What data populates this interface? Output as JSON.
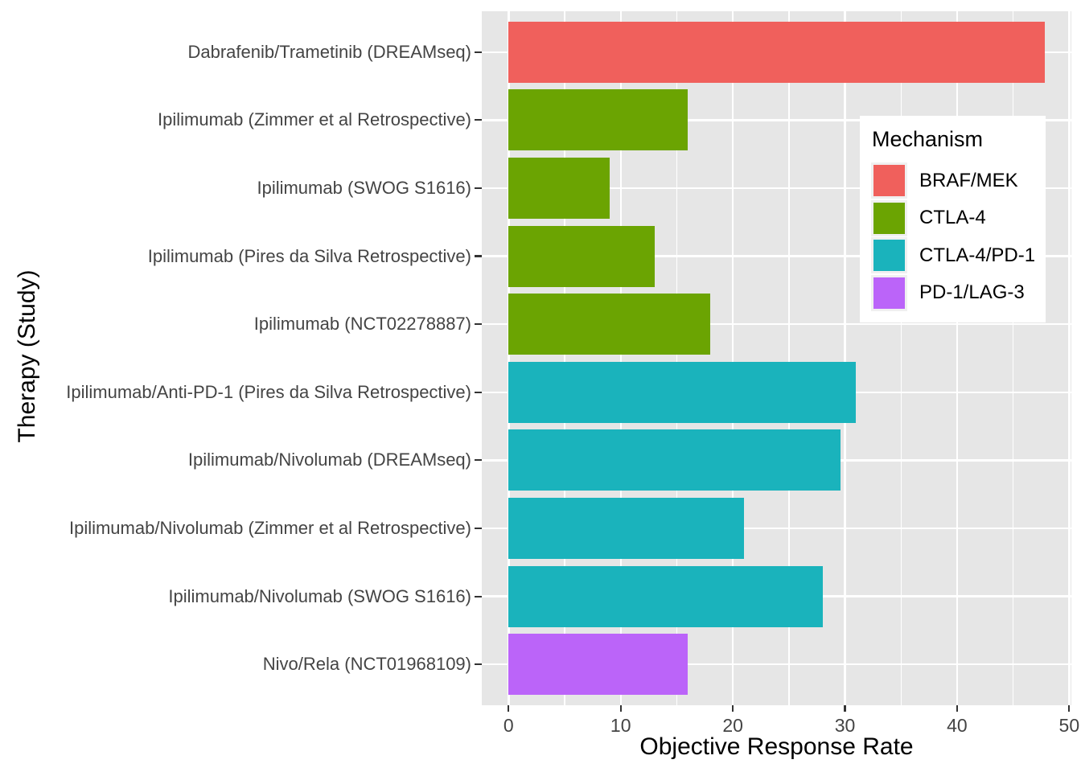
{
  "chart_data": {
    "type": "bar",
    "orientation": "horizontal",
    "xlabel": "Objective Response Rate",
    "ylabel": "Therapy (Study)",
    "categories": [
      "Dabrafenib/Trametinib (DREAMseq)",
      "Ipilimumab (Zimmer et al Retrospective)",
      "Ipilimumab (SWOG S1616)",
      "Ipilimumab (Pires da Silva Retrospective)",
      "Ipilimumab (NCT02278887)",
      "Ipilimumab/Anti-PD-1 (Pires da Silva Retrospective)",
      "Ipilimumab/Nivolumab (DREAMseq)",
      "Ipilimumab/Nivolumab (Zimmer et al Retrospective)",
      "Ipilimumab/Nivolumab (SWOG S1616)",
      "Nivo/Rela (NCT01968109)"
    ],
    "values": [
      47.8,
      16,
      9,
      13,
      18,
      31,
      29.6,
      21,
      28,
      16
    ],
    "mechanisms": [
      "BRAF/MEK",
      "CTLA-4",
      "CTLA-4",
      "CTLA-4",
      "CTLA-4",
      "CTLA-4/PD-1",
      "CTLA-4/PD-1",
      "CTLA-4/PD-1",
      "CTLA-4/PD-1",
      "PD-1/LAG-3"
    ],
    "xlim": [
      0,
      50
    ],
    "x_major_ticks": [
      0,
      10,
      20,
      30,
      40,
      50
    ],
    "x_minor_ticks": [
      5,
      15,
      25,
      35,
      45
    ],
    "grid": true,
    "panel_bg": "#E6E6E6",
    "axis_text_color": "#444444",
    "legend": {
      "title": "Mechanism",
      "position": "inside-right",
      "entries": [
        {
          "label": "BRAF/MEK",
          "color": "#F0605C"
        },
        {
          "label": "CTLA-4",
          "color": "#6BA402"
        },
        {
          "label": "CTLA-4/PD-1",
          "color": "#1AB3BC"
        },
        {
          "label": "PD-1/LAG-3",
          "color": "#BB64F9"
        }
      ]
    }
  }
}
